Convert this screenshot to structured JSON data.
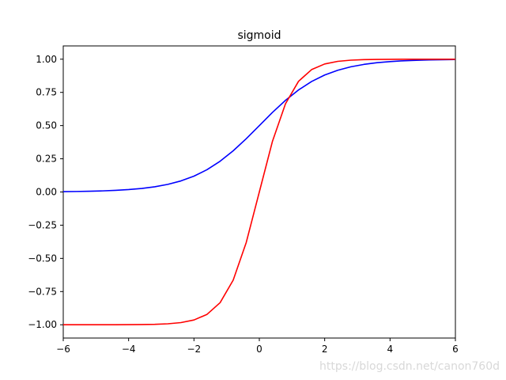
{
  "chart_data": {
    "type": "line",
    "title": "sigmoid",
    "xlabel": "",
    "ylabel": "",
    "xlim": [
      -6,
      6
    ],
    "ylim": [
      -1.1,
      1.1
    ],
    "grid": false,
    "xticks": [
      -6,
      -4,
      -2,
      0,
      2,
      4,
      6
    ],
    "xtick_labels": [
      "−6",
      "−4",
      "−2",
      "0",
      "2",
      "4",
      "6"
    ],
    "yticks": [
      -1.0,
      -0.75,
      -0.5,
      -0.25,
      0.0,
      0.25,
      0.5,
      0.75,
      1.0
    ],
    "ytick_labels": [
      "−1.00",
      "−0.75",
      "−0.50",
      "−0.25",
      "0.00",
      "0.25",
      "0.50",
      "0.75",
      "1.00"
    ],
    "x": [
      -6.0,
      -5.6,
      -5.2,
      -4.8,
      -4.4,
      -4.0,
      -3.6,
      -3.2,
      -2.8,
      -2.4,
      -2.0,
      -1.6,
      -1.2,
      -0.8,
      -0.4,
      0.0,
      0.4,
      0.8,
      1.2,
      1.6,
      2.0,
      2.4,
      2.8,
      3.2,
      3.6,
      4.0,
      4.4,
      4.8,
      5.2,
      5.6,
      6.0
    ],
    "series": [
      {
        "color": "#0000ff",
        "values": [
          0.0025,
          0.0037,
          0.0055,
          0.0082,
          0.0121,
          0.018,
          0.0266,
          0.0392,
          0.0573,
          0.0832,
          0.1192,
          0.168,
          0.2315,
          0.31,
          0.4013,
          0.5,
          0.5987,
          0.69,
          0.7685,
          0.832,
          0.8808,
          0.9168,
          0.9427,
          0.9608,
          0.9734,
          0.982,
          0.9879,
          0.9918,
          0.9945,
          0.9963,
          0.9975
        ]
      },
      {
        "color": "#ff0000",
        "values": [
          -1.0,
          -1.0,
          -0.9999,
          -0.9999,
          -0.9997,
          -0.9993,
          -0.9985,
          -0.9967,
          -0.9926,
          -0.9837,
          -0.964,
          -0.9217,
          -0.8337,
          -0.664,
          -0.3799,
          0.0,
          0.3799,
          0.664,
          0.8337,
          0.9217,
          0.964,
          0.9837,
          0.9926,
          0.9967,
          0.9985,
          0.9993,
          0.9997,
          0.9999,
          0.9999,
          1.0,
          1.0
        ]
      }
    ]
  },
  "watermark": "https://blog.csdn.net/canon760d"
}
